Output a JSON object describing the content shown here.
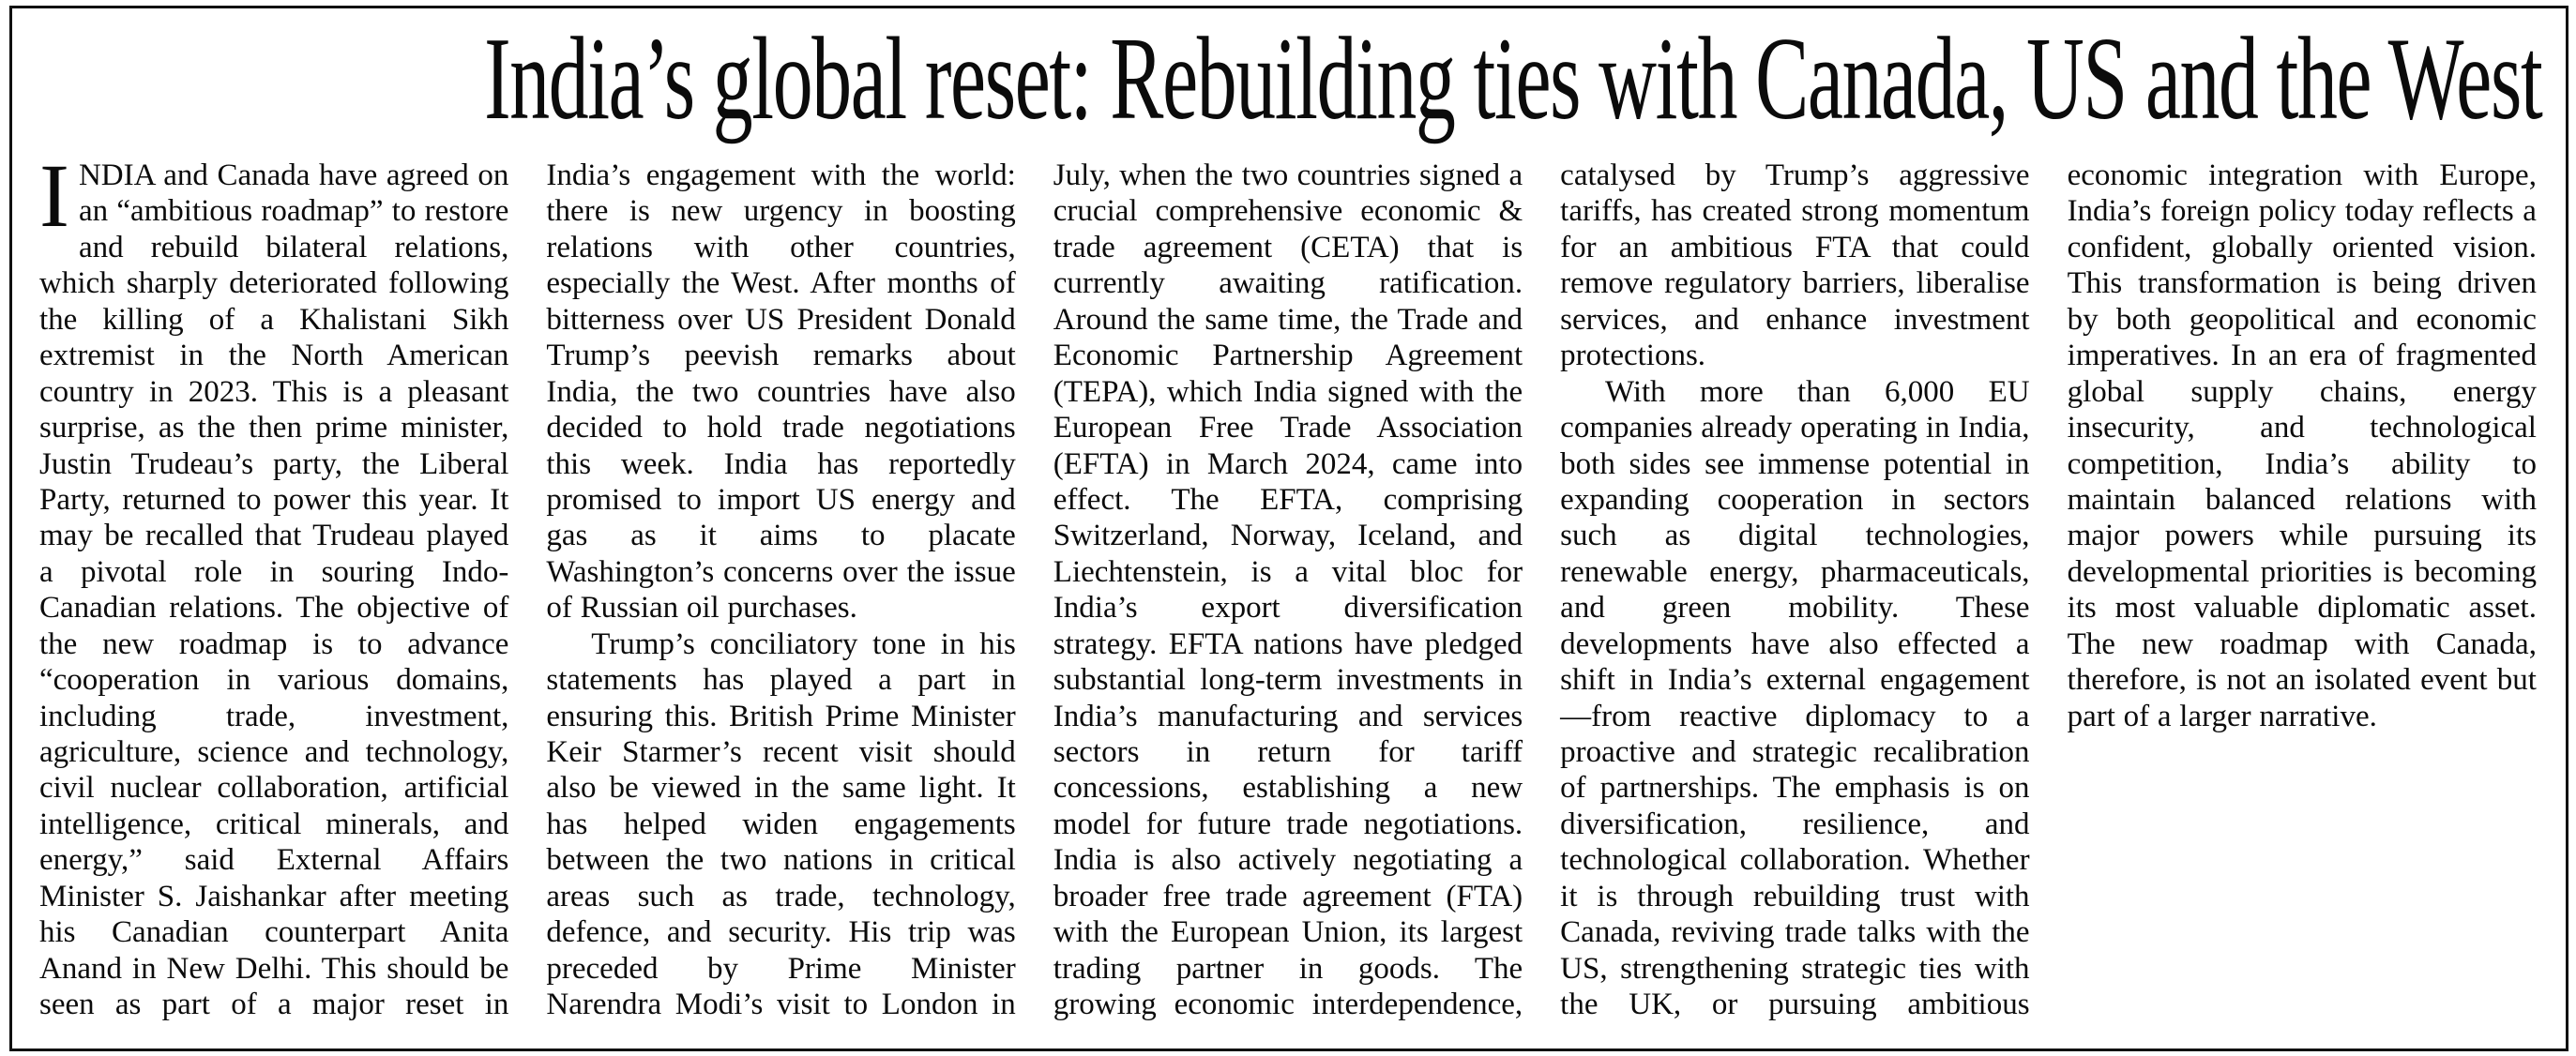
{
  "article": {
    "headline": "India’s global reset: Rebuilding ties with Canada, US and the West",
    "body": {
      "drop_cap": "I",
      "paragraph1": "NDIA and Canada have agreed on an “ambitious roadmap” to restore and rebuild bilateral relations, which sharply deteriorated following the killing of a Khalistani Sikh extremist in the North American country in 2023. This is a pleasant surprise, as the then prime minister, Justin Trudeau’s party, the Liberal Party, returned to power this year. It may be recalled that Trudeau played a pivotal role in souring Indo-Canadian relations. The objective of the new roadmap is to advance “cooperation in various domains, including trade, investment, agriculture, science and technology, civil nuclear collaboration, artificial intelligence, critical minerals, and energy,” said External Affairs Minister S. Jaishankar after meeting his Canadian counterpart Anita Anand in New Delhi. This should be seen as part of a major reset in India’s engagement with the world: there is new urgency in boosting relations with other countries, especially the West. After months of bitterness over US President Donald Trump’s peevish remarks about India, the two countries have also decided to hold trade negotiations this week. India has reportedly promised to import US energy and gas as it aims to placate Washington’s concerns over the issue of Russian oil purchases.",
      "paragraph2": "Trump’s conciliatory tone in his statements has played a part in ensuring this. British Prime Minister Keir Starmer’s recent visit should also be viewed in the same light. It has helped widen engagements between the two nations in critical areas such as trade, technology, defence, and security. His trip was preceded by Prime Minister Narendra Modi’s visit to London in July, when the two countries signed a crucial comprehensive economic & trade agreement (CETA) that is currently awaiting ratification. Around the same time, the Trade and Economic Partnership Agreement (TEPA), which India signed with the European Free Trade Association (EFTA) in March 2024, came into effect. The EFTA, comprising Switzerland, Norway, Iceland, and Liechtenstein, is a vital bloc for India’s export diversification strategy. EFTA nations have pledged substantial long-term investments in India’s manufacturing and services sectors in return for tariff concessions, establishing a new model for future trade negotiations. India is also actively negotiating a broader free trade agreement (FTA) with the European Union, its largest trading partner in goods. The growing economic interdependence, catalysed by Trump’s aggressive tariffs, has created strong momentum for an ambitious FTA that could remove regulatory barriers, liberalise services, and enhance investment protections.",
      "paragraph3": "With more than 6,000 EU companies already operating in India, both sides see immense potential in expanding cooperation in sectors such as digital technologies, renewable energy, pharmaceuticals, and green mobility. These developments have also effected a shift in India’s external engagement—from reactive diplomacy to a proactive and strategic recalibration of partnerships. The emphasis is on diversification, resilience, and technological collaboration. Whether it is through rebuilding trust with Canada, reviving trade talks with the US, strengthening strategic ties with the UK, or pursuing ambitious economic integration with Europe, India’s foreign policy today reflects a confident, globally oriented vision. This transformation is being driven by both geopolitical and economic imperatives. In an era of fragmented global supply chains, energy insecurity, and technological competition, India’s ability to maintain balanced relations with major powers while pursuing its developmental priorities is becoming its most valuable diplomatic asset. The new roadmap with Canada, therefore, is not an isolated event but part of a larger narrative."
    }
  }
}
